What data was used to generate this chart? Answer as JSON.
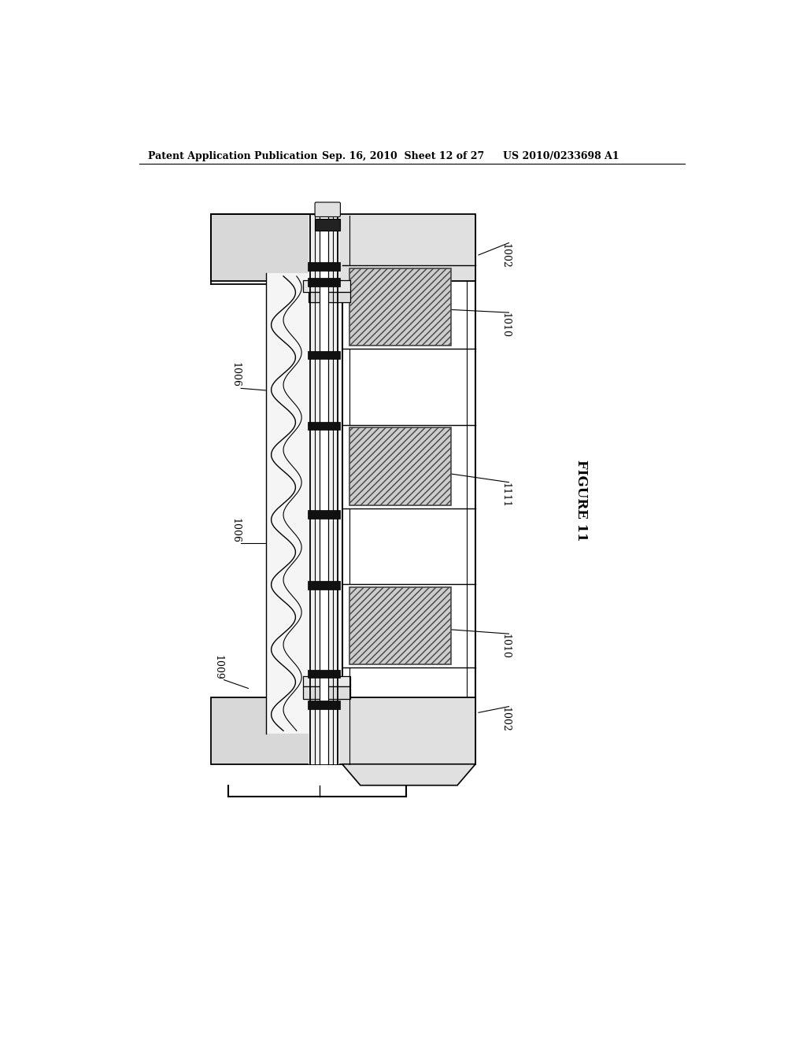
{
  "header_left": "Patent Application Publication",
  "header_mid": "Sep. 16, 2010  Sheet 12 of 27",
  "header_right": "US 2010/0233698 A1",
  "figure_label": "FIGURE 11",
  "labels": {
    "1002_top": "1002",
    "1010_top": "1010",
    "1006_upper": "1006",
    "1111": "1111",
    "1006_lower": "1006",
    "1009": "1009",
    "1010_bot": "1010",
    "1002_bot": "1002"
  },
  "bg_color": "#ffffff",
  "lc": "#000000"
}
